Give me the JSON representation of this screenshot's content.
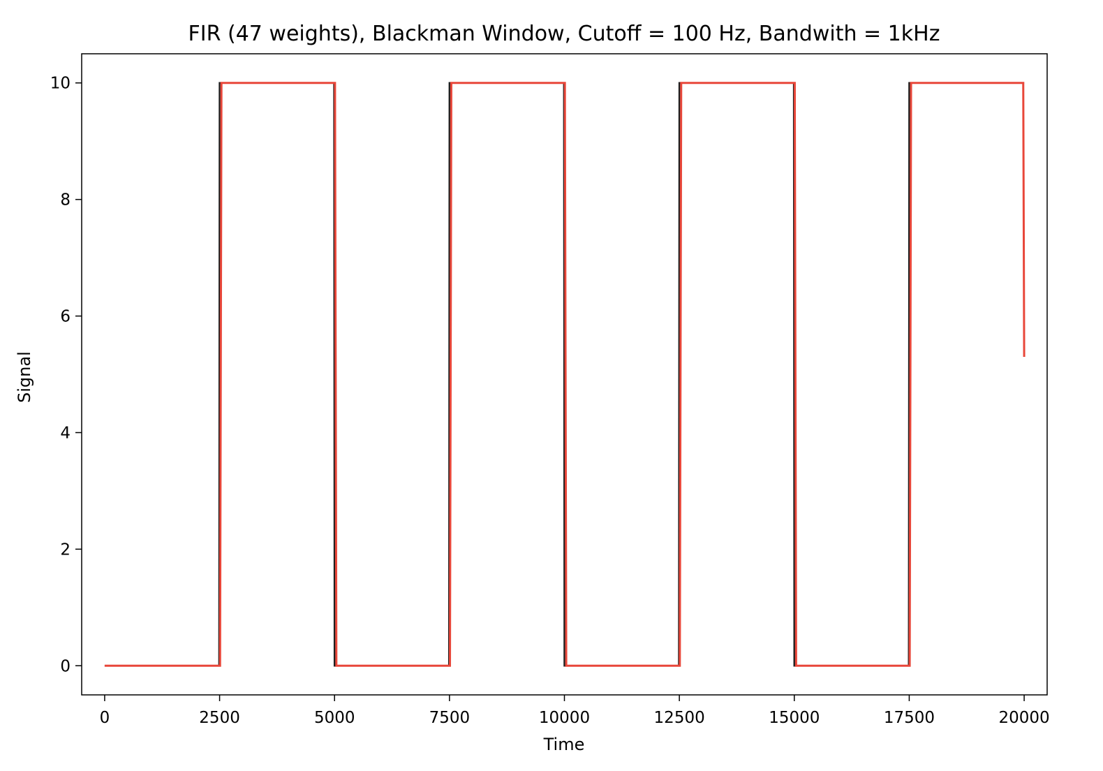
{
  "chart_data": {
    "type": "line",
    "title": "FIR (47 weights), Blackman Window, Cutoff = 100 Hz, Bandwith = 1kHz",
    "xlabel": "Time",
    "ylabel": "Signal",
    "xlim": [
      -500,
      20500
    ],
    "ylim": [
      -0.5,
      10.5
    ],
    "xticks": [
      0,
      2500,
      5000,
      7500,
      10000,
      12500,
      15000,
      17500,
      20000
    ],
    "xtick_labels": [
      "0",
      "2500",
      "5000",
      "7500",
      "10000",
      "12500",
      "15000",
      "17500",
      "20000"
    ],
    "yticks": [
      0,
      2,
      4,
      6,
      8,
      10
    ],
    "ytick_labels": [
      "0",
      "2",
      "4",
      "6",
      "8",
      "10"
    ],
    "grid": false,
    "legend": "none",
    "series": [
      {
        "color": "#1f1f1f",
        "x": [
          0,
          2490,
          2500,
          4990,
          5000,
          7490,
          7500,
          9990,
          10000,
          12490,
          12500,
          14990,
          15000,
          17490,
          17500,
          20000
        ],
        "y": [
          0,
          0,
          10,
          10,
          0,
          0,
          10,
          10,
          0,
          0,
          10,
          10,
          0,
          0,
          10,
          10
        ]
      },
      {
        "color": "#e8473a",
        "x": [
          0,
          2510,
          2540,
          5010,
          5040,
          7510,
          7540,
          10010,
          10040,
          12510,
          12540,
          15010,
          15040,
          17510,
          17540,
          19980,
          20000
        ],
        "y": [
          0,
          0,
          10,
          10,
          0,
          0,
          10,
          10,
          0,
          0,
          10,
          10,
          0,
          0,
          10,
          10,
          5.3
        ]
      }
    ]
  }
}
